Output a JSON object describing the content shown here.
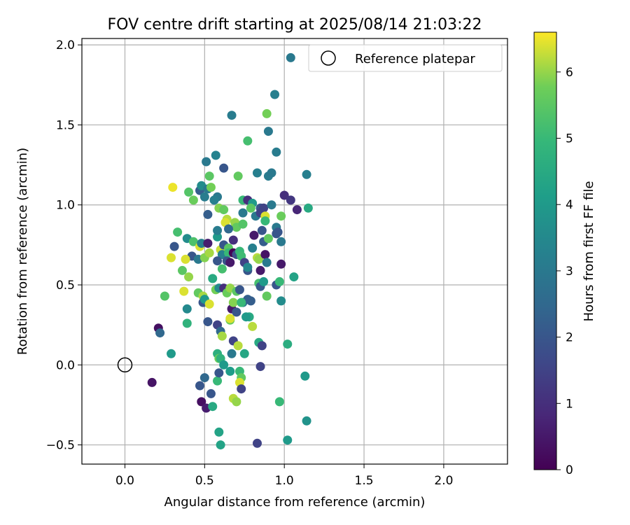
{
  "chart_data": {
    "type": "scatter",
    "title": "FOV centre drift starting at 2025/08/14 21:03:22",
    "xlabel": "Angular distance from reference (arcmin)",
    "ylabel": "Rotation from reference (arcmin)",
    "xlim": [
      -0.27,
      2.4
    ],
    "ylim": [
      -0.62,
      2.04
    ],
    "xticks": [
      0.0,
      0.5,
      1.0,
      1.5,
      2.0
    ],
    "yticks": [
      -0.5,
      0.0,
      0.5,
      1.0,
      1.5,
      2.0
    ],
    "xtick_labels": [
      "0.0",
      "0.5",
      "1.0",
      "1.5",
      "2.0"
    ],
    "ytick_labels": [
      "−0.5",
      "0.0",
      "0.5",
      "1.0",
      "1.5",
      "2.0"
    ],
    "grid": true,
    "legend": {
      "placement": "top-right",
      "entries": [
        "Reference platepar"
      ]
    },
    "reference_point": {
      "x": 0.0,
      "y": 0.0
    },
    "colorbar": {
      "label": "Hours from first FF file",
      "colormap": "viridis",
      "range": [
        0,
        6.6
      ],
      "ticks": [
        0,
        1,
        2,
        3,
        4,
        5,
        6
      ],
      "tick_labels": [
        "0",
        "1",
        "2",
        "3",
        "4",
        "5",
        "6"
      ]
    },
    "points": [
      [
        1.04,
        1.92,
        3.0
      ],
      [
        0.94,
        1.69,
        3.2
      ],
      [
        0.67,
        1.56,
        3.1
      ],
      [
        0.89,
        1.57,
        5.8
      ],
      [
        0.9,
        1.46,
        3.0
      ],
      [
        0.77,
        1.4,
        5.2
      ],
      [
        0.95,
        1.33,
        3.1
      ],
      [
        0.57,
        1.31,
        3.3
      ],
      [
        0.51,
        1.27,
        3.0
      ],
      [
        0.62,
        1.23,
        2.0
      ],
      [
        0.53,
        1.18,
        5.5
      ],
      [
        0.71,
        1.18,
        5.6
      ],
      [
        0.83,
        1.2,
        3.2
      ],
      [
        0.9,
        1.18,
        3.1
      ],
      [
        0.92,
        1.2,
        3.0
      ],
      [
        1.14,
        1.19,
        3.2
      ],
      [
        0.3,
        1.11,
        6.5
      ],
      [
        0.47,
        1.09,
        2.2
      ],
      [
        0.48,
        1.12,
        3.6
      ],
      [
        0.52,
        1.1,
        3.0
      ],
      [
        0.54,
        1.11,
        5.8
      ],
      [
        0.4,
        1.08,
        5.4
      ],
      [
        0.43,
        1.03,
        5.7
      ],
      [
        0.5,
        1.05,
        3.1
      ],
      [
        0.58,
        1.05,
        3.0
      ],
      [
        0.56,
        1.03,
        3.2
      ],
      [
        0.74,
        1.03,
        5.0
      ],
      [
        0.77,
        1.03,
        1.0
      ],
      [
        0.8,
        1.01,
        4.0
      ],
      [
        0.85,
        0.98,
        2.0
      ],
      [
        0.87,
        0.98,
        1.5
      ],
      [
        0.92,
        1.0,
        3.0
      ],
      [
        1.0,
        1.06,
        1.0
      ],
      [
        1.04,
        1.03,
        1.2
      ],
      [
        1.08,
        0.97,
        0.8
      ],
      [
        1.15,
        0.98,
        4.5
      ],
      [
        0.52,
        0.94,
        2.2
      ],
      [
        0.59,
        0.98,
        5.9
      ],
      [
        0.62,
        0.97,
        5.6
      ],
      [
        0.64,
        0.91,
        6.2
      ],
      [
        0.63,
        0.89,
        6.4
      ],
      [
        0.69,
        0.89,
        6.0
      ],
      [
        0.7,
        0.86,
        5.6
      ],
      [
        0.74,
        0.88,
        5.4
      ],
      [
        0.74,
        0.95,
        3.0
      ],
      [
        0.79,
        0.98,
        5.5
      ],
      [
        0.82,
        0.93,
        3.0
      ],
      [
        0.85,
        0.95,
        1.5
      ],
      [
        0.88,
        0.93,
        6.4
      ],
      [
        0.88,
        0.9,
        5.0
      ],
      [
        0.98,
        0.93,
        5.7
      ],
      [
        0.95,
        0.86,
        3.0
      ],
      [
        0.96,
        0.83,
        2.0
      ],
      [
        0.33,
        0.83,
        5.2
      ],
      [
        0.39,
        0.79,
        3.6
      ],
      [
        0.43,
        0.77,
        5.3
      ],
      [
        0.47,
        0.74,
        6.4
      ],
      [
        0.48,
        0.76,
        3.2
      ],
      [
        0.52,
        0.76,
        0.6
      ],
      [
        0.31,
        0.74,
        2.0
      ],
      [
        0.29,
        0.67,
        6.4
      ],
      [
        0.42,
        0.68,
        2.0
      ],
      [
        0.46,
        0.66,
        3.0
      ],
      [
        0.5,
        0.67,
        5.9
      ],
      [
        0.53,
        0.7,
        6.1
      ],
      [
        0.58,
        0.8,
        4.0
      ],
      [
        0.58,
        0.84,
        3.1
      ],
      [
        0.6,
        0.72,
        6.3
      ],
      [
        0.61,
        0.69,
        3.3
      ],
      [
        0.62,
        0.75,
        2.0
      ],
      [
        0.65,
        0.73,
        5.5
      ],
      [
        0.65,
        0.7,
        5.0
      ],
      [
        0.65,
        0.85,
        2.5
      ],
      [
        0.68,
        0.78,
        1.0
      ],
      [
        0.68,
        0.7,
        0.0
      ],
      [
        0.7,
        0.69,
        1.8
      ],
      [
        0.72,
        0.71,
        5.0
      ],
      [
        0.73,
        0.68,
        5.1
      ],
      [
        0.75,
        0.64,
        1.5
      ],
      [
        0.77,
        0.59,
        2.0
      ],
      [
        0.77,
        0.61,
        3.5
      ],
      [
        0.8,
        0.73,
        3.2
      ],
      [
        0.81,
        0.81,
        0.5
      ],
      [
        0.83,
        0.67,
        6.2
      ],
      [
        0.84,
        0.66,
        6.0
      ],
      [
        0.85,
        0.59,
        0.5
      ],
      [
        0.86,
        0.84,
        2.0
      ],
      [
        0.87,
        0.77,
        2.2
      ],
      [
        0.88,
        0.69,
        0.4
      ],
      [
        0.89,
        0.64,
        3.0
      ],
      [
        0.9,
        0.79,
        5.6
      ],
      [
        0.95,
        0.82,
        2.0
      ],
      [
        0.98,
        0.77,
        3.0
      ],
      [
        0.98,
        0.63,
        0.5
      ],
      [
        1.06,
        0.55,
        4.3
      ],
      [
        0.38,
        0.66,
        6.4
      ],
      [
        0.36,
        0.59,
        5.5
      ],
      [
        0.4,
        0.55,
        6.0
      ],
      [
        0.37,
        0.46,
        6.4
      ],
      [
        0.46,
        0.45,
        5.6
      ],
      [
        0.49,
        0.43,
        6.1
      ],
      [
        0.57,
        0.47,
        5.8
      ],
      [
        0.59,
        0.48,
        3.5
      ],
      [
        0.62,
        0.48,
        1.0
      ],
      [
        0.64,
        0.45,
        5.7
      ],
      [
        0.66,
        0.48,
        6.0
      ],
      [
        0.7,
        0.46,
        5.5
      ],
      [
        0.72,
        0.47,
        2.0
      ],
      [
        0.74,
        0.39,
        3.0
      ],
      [
        0.77,
        0.41,
        2.2
      ],
      [
        0.55,
        0.54,
        4.5
      ],
      [
        0.58,
        0.65,
        2.0
      ],
      [
        0.61,
        0.6,
        5.2
      ],
      [
        0.64,
        0.65,
        2.0
      ],
      [
        0.66,
        0.64,
        0.5
      ],
      [
        0.78,
        0.3,
        4.5
      ],
      [
        0.8,
        0.24,
        6.2
      ],
      [
        0.84,
        0.51,
        5.2
      ],
      [
        0.85,
        0.49,
        2.1
      ],
      [
        0.87,
        0.52,
        4.0
      ],
      [
        0.89,
        0.43,
        5.6
      ],
      [
        0.95,
        0.5,
        2.0
      ],
      [
        0.97,
        0.52,
        5.0
      ],
      [
        0.98,
        0.4,
        3.6
      ],
      [
        0.25,
        0.43,
        5.4
      ],
      [
        0.39,
        0.35,
        3.5
      ],
      [
        0.39,
        0.26,
        4.8
      ],
      [
        0.49,
        0.39,
        2.0
      ],
      [
        0.5,
        0.41,
        4.0
      ],
      [
        0.53,
        0.38,
        6.4
      ],
      [
        0.52,
        0.27,
        2.0
      ],
      [
        0.58,
        0.25,
        1.5
      ],
      [
        0.6,
        0.21,
        2.5
      ],
      [
        0.61,
        0.18,
        6.1
      ],
      [
        0.66,
        0.28,
        5.7
      ],
      [
        0.66,
        0.29,
        6.4
      ],
      [
        0.67,
        0.35,
        0.5
      ],
      [
        0.68,
        0.39,
        5.9
      ],
      [
        0.68,
        0.15,
        1.5
      ],
      [
        0.7,
        0.33,
        2.0
      ],
      [
        0.73,
        0.39,
        5.0
      ],
      [
        0.76,
        0.3,
        4.0
      ],
      [
        0.79,
        0.4,
        2.2
      ],
      [
        0.84,
        0.14,
        4.5
      ],
      [
        0.86,
        0.12,
        1.5
      ],
      [
        1.02,
        0.13,
        4.6
      ],
      [
        0.21,
        0.23,
        0.3
      ],
      [
        0.22,
        0.2,
        2.5
      ],
      [
        0.29,
        0.07,
        4.0
      ],
      [
        0.58,
        0.07,
        4.7
      ],
      [
        0.59,
        0.04,
        5.7
      ],
      [
        0.6,
        0.04,
        4.8
      ],
      [
        0.67,
        0.07,
        3.0
      ],
      [
        0.71,
        0.12,
        6.2
      ],
      [
        0.75,
        0.07,
        4.4
      ],
      [
        0.85,
        -0.01,
        1.5
      ],
      [
        0.17,
        -0.11,
        0.4
      ],
      [
        0.47,
        -0.13,
        2.0
      ],
      [
        0.5,
        -0.08,
        2.5
      ],
      [
        0.58,
        -0.1,
        5.0
      ],
      [
        0.59,
        -0.05,
        2.0
      ],
      [
        0.62,
        0.0,
        4.0
      ],
      [
        0.66,
        -0.04,
        4.1
      ],
      [
        0.72,
        -0.04,
        5.0
      ],
      [
        0.73,
        -0.08,
        5.6
      ],
      [
        0.72,
        -0.11,
        6.4
      ],
      [
        0.73,
        -0.15,
        1.5
      ],
      [
        0.48,
        -0.23,
        0.3
      ],
      [
        0.51,
        -0.27,
        0.6
      ],
      [
        0.54,
        -0.18,
        2.0
      ],
      [
        0.55,
        -0.26,
        4.5
      ],
      [
        0.68,
        -0.21,
        6.2
      ],
      [
        0.7,
        -0.23,
        6.0
      ],
      [
        0.97,
        -0.23,
        5.0
      ],
      [
        1.13,
        -0.07,
        4.0
      ],
      [
        0.59,
        -0.42,
        4.3
      ],
      [
        0.6,
        -0.5,
        4.3
      ],
      [
        0.83,
        -0.49,
        1.5
      ],
      [
        1.02,
        -0.47,
        4.0
      ],
      [
        1.14,
        -0.35,
        3.8
      ]
    ]
  }
}
